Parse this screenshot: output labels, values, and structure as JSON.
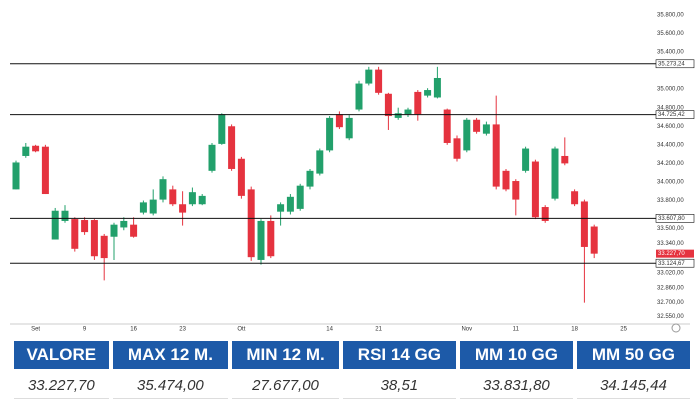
{
  "chart_data": {
    "type": "candlestick",
    "categories": [
      null,
      null,
      "Set",
      null,
      null,
      null,
      null,
      "9",
      null,
      null,
      null,
      null,
      "16",
      null,
      null,
      null,
      null,
      "23",
      null,
      null,
      null,
      null,
      null,
      "Ott",
      null,
      null,
      null,
      null,
      null,
      null,
      null,
      null,
      "14",
      null,
      null,
      null,
      null,
      "21",
      null,
      null,
      null,
      null,
      null,
      null,
      null,
      null,
      "Nov",
      null,
      null,
      null,
      null,
      "11",
      null,
      null,
      null,
      null,
      null,
      "18",
      null,
      null,
      null,
      null,
      "25"
    ],
    "open": [
      33920,
      34280,
      34390,
      34380,
      33380,
      33580,
      33600,
      33590,
      33590,
      33420,
      33410,
      33510,
      33540,
      33670,
      33660,
      33810,
      33920,
      33760,
      33760,
      33760,
      34120,
      34410,
      34600,
      34250,
      33920,
      33160,
      33580,
      33680,
      33680,
      33710,
      33950,
      34090,
      34340,
      34730,
      34470,
      34780,
      35060,
      35210,
      34950,
      34690,
      34730,
      34970,
      34930,
      34910,
      34780,
      34470,
      34340,
      34670,
      34520,
      34620,
      34120,
      34010,
      34120,
      34220,
      33730,
      33820,
      34280,
      33900,
      33790,
      33520,
      null,
      null,
      null
    ],
    "high": [
      34230,
      34420,
      34400,
      34400,
      33720,
      33750,
      33620,
      33620,
      33600,
      33440,
      33560,
      33620,
      33620,
      33800,
      33920,
      34060,
      33960,
      33900,
      33940,
      33870,
      34420,
      34740,
      34620,
      34270,
      33950,
      33600,
      33640,
      33780,
      33870,
      33980,
      34140,
      34360,
      34710,
      34760,
      34720,
      35090,
      35240,
      35240,
      34960,
      34800,
      34800,
      34990,
      35010,
      35240,
      34790,
      34500,
      34690,
      34690,
      34650,
      34930,
      34140,
      34030,
      34380,
      34240,
      33750,
      34380,
      34480,
      33920,
      33810,
      33540,
      null,
      null,
      null
    ],
    "low": [
      33920,
      34260,
      34320,
      33870,
      33380,
      33560,
      33250,
      33430,
      33160,
      32940,
      33160,
      33480,
      33400,
      33650,
      33640,
      33780,
      33740,
      33530,
      33740,
      33750,
      34100,
      34400,
      34120,
      33820,
      33150,
      33110,
      33180,
      33530,
      33650,
      33690,
      33920,
      34070,
      34320,
      34570,
      34450,
      34760,
      35040,
      34940,
      34560,
      34670,
      34700,
      34660,
      34910,
      34900,
      34400,
      34220,
      34320,
      34520,
      34500,
      33920,
      33900,
      33640,
      34100,
      33600,
      33560,
      33800,
      34180,
      33740,
      32700,
      33180,
      null,
      null,
      null
    ],
    "close": [
      34210,
      34380,
      34330,
      33870,
      33690,
      33690,
      33280,
      33460,
      33200,
      33180,
      33540,
      33580,
      33410,
      33780,
      33810,
      34030,
      33760,
      33670,
      33890,
      33850,
      34400,
      34730,
      34140,
      33850,
      33190,
      33580,
      33200,
      33760,
      33840,
      33960,
      34120,
      34340,
      34690,
      34590,
      34690,
      35060,
      35210,
      34960,
      34710,
      34740,
      34780,
      34730,
      34990,
      35120,
      34420,
      34250,
      34670,
      34540,
      34620,
      33950,
      33920,
      33810,
      34360,
      33620,
      33580,
      34360,
      34200,
      33760,
      33300,
      33227.7,
      null,
      null,
      null
    ],
    "up_color": "#22a06b",
    "down_color": "#e5333f",
    "ylim": [
      32470,
      35960
    ],
    "yticks": [
      {
        "value": 35800,
        "label": "35.800,00"
      },
      {
        "value": 35600,
        "label": "35.600,00"
      },
      {
        "value": 35400,
        "label": "35.400,00"
      },
      {
        "value": 35000,
        "label": "35.000,00"
      },
      {
        "value": 34800,
        "label": "34.800,00"
      },
      {
        "value": 34600,
        "label": "34.600,00"
      },
      {
        "value": 34400,
        "label": "34.400,00"
      },
      {
        "value": 34200,
        "label": "34.200,00"
      },
      {
        "value": 34000,
        "label": "34.000,00"
      },
      {
        "value": 33800,
        "label": "33.800,00"
      },
      {
        "value": 33500,
        "label": "33.500,00"
      },
      {
        "value": 33340,
        "label": "33.340,00"
      },
      {
        "value": 33020,
        "label": "33.020,00"
      },
      {
        "value": 32860,
        "label": "32.860,00"
      },
      {
        "value": 32700,
        "label": "32.700,00"
      },
      {
        "value": 32550,
        "label": "32.550,00"
      }
    ],
    "levels": [
      {
        "value": 35273.24,
        "label": "35.273,24"
      },
      {
        "value": 34725.42,
        "label": "34.725,42"
      },
      {
        "value": 33607.8,
        "label": "33.607,80"
      },
      {
        "value": 33124.67,
        "label": "33.124,67"
      }
    ],
    "last_price": {
      "value": 33227.7,
      "label": "33.227,70"
    }
  },
  "table": {
    "headers": [
      "VALORE",
      "MAX 12 M.",
      "MIN 12 M.",
      "RSI 14 GG",
      "MM 10 GG",
      "MM 50 GG"
    ],
    "rows": [
      [
        "33.227,70",
        "35.474,00",
        "27.677,00",
        "38,51",
        "33.831,80",
        "34.145,44"
      ]
    ]
  }
}
